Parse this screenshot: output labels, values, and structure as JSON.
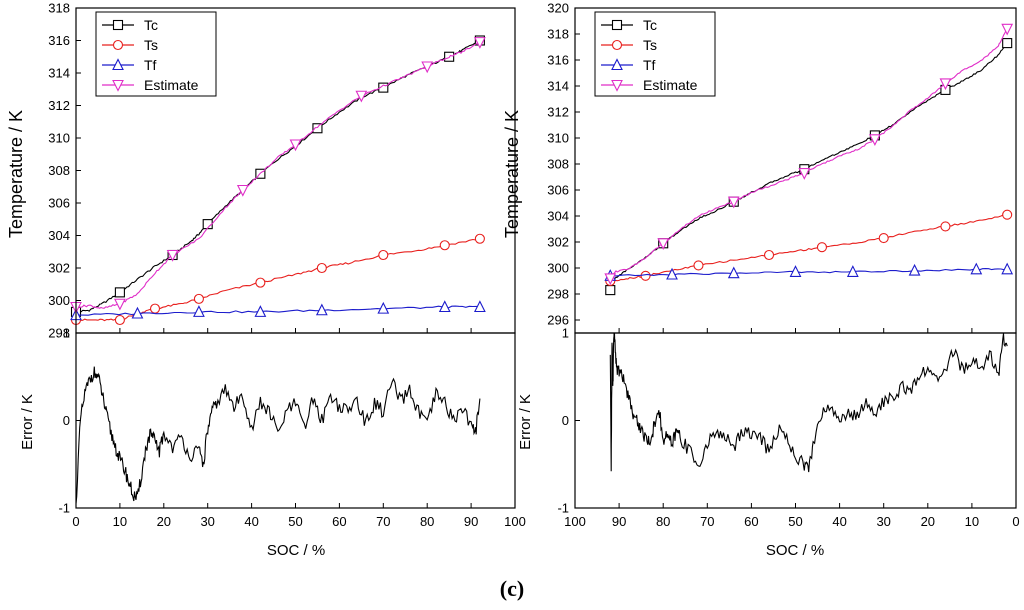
{
  "caption": "(c)",
  "chart_data": [
    {
      "type": "line",
      "panel": "left-top",
      "title": "",
      "xlabel": "SOC / %",
      "ylabel": "Temperature / K",
      "xlim": [
        0,
        100
      ],
      "ylim": [
        298,
        318
      ],
      "xticks": [
        0,
        10,
        20,
        30,
        40,
        50,
        60,
        70,
        80,
        90,
        100
      ],
      "yticks": [
        298,
        300,
        302,
        304,
        306,
        308,
        310,
        312,
        314,
        316,
        318
      ],
      "legend": "top-left",
      "series": [
        {
          "name": "Tc",
          "color": "#000000",
          "marker": "square",
          "x": [
            0,
            3,
            6,
            10,
            14,
            18,
            22,
            26,
            28,
            30,
            34,
            38,
            42,
            46,
            50,
            55,
            60,
            65,
            70,
            75,
            80,
            85,
            88,
            92
          ],
          "y": [
            299.3,
            299.4,
            299.8,
            300.5,
            301.3,
            302.1,
            302.8,
            303.6,
            304.1,
            304.7,
            305.8,
            306.8,
            307.8,
            308.7,
            309.5,
            310.6,
            311.6,
            312.5,
            313.1,
            313.8,
            314.4,
            315.0,
            315.4,
            316.0
          ]
        },
        {
          "name": "Ts",
          "color": "#e8201e",
          "marker": "circle",
          "x": [
            0,
            5,
            10,
            14,
            18,
            24,
            28,
            34,
            42,
            50,
            56,
            62,
            70,
            78,
            84,
            92
          ],
          "y": [
            298.8,
            298.8,
            298.8,
            299.2,
            299.5,
            299.8,
            300.1,
            300.6,
            301.1,
            301.6,
            302.0,
            302.3,
            302.8,
            303.1,
            303.4,
            303.8
          ]
        },
        {
          "name": "Tf",
          "color": "#1c1ccc",
          "marker": "triangle-up",
          "x": [
            0,
            14,
            28,
            42,
            56,
            70,
            84,
            92
          ],
          "y": [
            299.1,
            299.2,
            299.3,
            299.3,
            299.4,
            299.5,
            299.6,
            299.6
          ]
        },
        {
          "name": "Estimate",
          "color": "#e02ec8",
          "marker": "triangle-down",
          "x": [
            0,
            3,
            6,
            10,
            14,
            18,
            22,
            28,
            34,
            38,
            42,
            46,
            50,
            55,
            60,
            65,
            70,
            75,
            80,
            85,
            88,
            92
          ],
          "y": [
            299.6,
            299.7,
            299.5,
            299.8,
            300.4,
            301.7,
            302.8,
            303.8,
            305.7,
            306.8,
            307.8,
            308.8,
            309.6,
            310.7,
            311.7,
            312.6,
            313.2,
            313.8,
            314.4,
            315.0,
            315.3,
            315.9
          ]
        }
      ]
    },
    {
      "type": "line",
      "panel": "left-bottom",
      "xlabel": "SOC / %",
      "ylabel": "Error / K",
      "xlim": [
        0,
        100
      ],
      "ylim": [
        -1,
        1
      ],
      "xticks": [
        0,
        10,
        20,
        30,
        40,
        50,
        60,
        70,
        80,
        90,
        100
      ],
      "yticks": [
        -1,
        0,
        1
      ],
      "series": [
        {
          "name": "Error",
          "color": "#000000",
          "x": [
            0,
            1,
            2,
            3,
            4,
            5,
            6,
            7,
            8,
            9,
            10,
            11,
            12,
            13,
            14,
            15,
            16,
            17,
            18,
            19,
            20,
            22,
            24,
            26,
            28,
            29,
            30,
            31,
            32,
            34,
            36,
            38,
            40,
            42,
            44,
            46,
            48,
            50,
            52,
            54,
            56,
            58,
            60,
            62,
            64,
            66,
            68,
            70,
            72,
            74,
            76,
            78,
            80,
            82,
            84,
            86,
            88,
            90,
            91,
            92
          ],
          "y": [
            -0.95,
            0.0,
            0.3,
            0.45,
            0.55,
            0.5,
            0.3,
            0.05,
            -0.15,
            -0.3,
            -0.45,
            -0.55,
            -0.7,
            -0.85,
            -0.9,
            -0.6,
            -0.3,
            -0.15,
            -0.25,
            -0.35,
            -0.15,
            -0.3,
            -0.2,
            -0.4,
            -0.35,
            -0.5,
            -0.1,
            0.1,
            0.2,
            0.35,
            0.15,
            0.3,
            -0.1,
            0.2,
            0.1,
            -0.15,
            0.1,
            0.2,
            -0.1,
            0.25,
            0.0,
            0.3,
            0.15,
            0.1,
            0.25,
            -0.05,
            0.2,
            0.1,
            0.45,
            0.2,
            0.35,
            0.1,
            -0.05,
            0.3,
            0.2,
            0.0,
            0.15,
            -0.05,
            -0.15,
            0.25
          ]
        }
      ]
    },
    {
      "type": "line",
      "panel": "right-top",
      "xlabel": "SOC / %",
      "ylabel": "Temperature / K",
      "xlim": [
        100,
        0
      ],
      "ylim": [
        295,
        320
      ],
      "xticks": [
        100,
        90,
        80,
        70,
        60,
        50,
        40,
        30,
        20,
        10,
        0
      ],
      "yticks": [
        296,
        298,
        300,
        302,
        304,
        306,
        308,
        310,
        312,
        314,
        316,
        318,
        320
      ],
      "legend": "top-left",
      "series": [
        {
          "name": "Tc",
          "color": "#000000",
          "marker": "square",
          "x": [
            92,
            91,
            88,
            84,
            80,
            76,
            72,
            68,
            64,
            60,
            56,
            52,
            48,
            44,
            40,
            36,
            32,
            28,
            24,
            20,
            16,
            12,
            8,
            4,
            2
          ],
          "y": [
            298.3,
            299.2,
            299.9,
            300.8,
            301.9,
            302.9,
            303.8,
            304.4,
            305.1,
            305.8,
            306.5,
            307.1,
            307.6,
            308.3,
            308.9,
            309.5,
            310.2,
            311.0,
            312.0,
            312.9,
            313.7,
            314.4,
            315.2,
            316.4,
            317.3
          ]
        },
        {
          "name": "Ts",
          "color": "#e8201e",
          "marker": "circle",
          "x": [
            92,
            88,
            84,
            78,
            72,
            64,
            56,
            50,
            44,
            37,
            30,
            23,
            16,
            9,
            2
          ],
          "y": [
            299.0,
            299.2,
            299.4,
            299.8,
            300.2,
            300.6,
            301.0,
            301.3,
            301.6,
            301.9,
            302.3,
            302.8,
            303.2,
            303.6,
            304.1
          ]
        },
        {
          "name": "Tf",
          "color": "#1c1ccc",
          "marker": "triangle-up",
          "x": [
            92,
            78,
            64,
            50,
            37,
            23,
            9,
            2
          ],
          "y": [
            299.4,
            299.5,
            299.6,
            299.7,
            299.7,
            299.8,
            299.9,
            299.9
          ]
        },
        {
          "name": "Estimate",
          "color": "#e02ec8",
          "marker": "triangle-down",
          "x": [
            92,
            91,
            88,
            84,
            80,
            76,
            72,
            68,
            64,
            60,
            56,
            52,
            48,
            44,
            40,
            36,
            32,
            28,
            24,
            20,
            16,
            12,
            8,
            4,
            2
          ],
          "y": [
            299.2,
            299.7,
            299.9,
            300.8,
            301.9,
            303.0,
            304.0,
            304.6,
            305.1,
            305.8,
            306.3,
            306.8,
            307.3,
            308.0,
            308.6,
            309.1,
            309.9,
            310.9,
            312.1,
            313.1,
            314.2,
            315.2,
            315.9,
            317.1,
            318.4
          ]
        }
      ]
    },
    {
      "type": "line",
      "panel": "right-bottom",
      "xlabel": "SOC / %",
      "ylabel": "Error / K",
      "xlim": [
        100,
        0
      ],
      "ylim": [
        -1,
        1
      ],
      "xticks": [
        100,
        90,
        80,
        70,
        60,
        50,
        40,
        30,
        20,
        10,
        0
      ],
      "yticks": [
        -1,
        0,
        1
      ],
      "series": [
        {
          "name": "Error",
          "color": "#000000",
          "x": [
            92,
            91.8,
            91.6,
            91.4,
            91.2,
            91,
            90.6,
            90,
            89,
            88,
            87,
            86,
            85,
            84,
            83,
            82,
            81,
            80,
            79,
            78,
            77,
            76,
            74,
            72,
            70,
            68,
            66,
            64,
            62,
            60,
            58,
            56,
            54,
            52,
            50,
            48,
            47,
            46,
            44,
            42,
            40,
            38,
            36,
            34,
            32,
            30,
            28,
            26,
            24,
            22,
            20,
            18,
            16,
            14,
            12,
            10,
            8,
            6,
            4,
            3,
            2
          ],
          "y": [
            0.75,
            -0.5,
            0.85,
            0.4,
            1.0,
            0.95,
            0.6,
            0.55,
            0.5,
            0.3,
            0.1,
            0.0,
            -0.1,
            -0.2,
            -0.25,
            -0.05,
            0.15,
            -0.25,
            -0.15,
            -0.3,
            -0.1,
            -0.2,
            -0.35,
            -0.5,
            -0.3,
            -0.1,
            -0.2,
            -0.3,
            -0.1,
            -0.15,
            -0.2,
            -0.35,
            -0.1,
            -0.2,
            -0.4,
            -0.5,
            -0.55,
            -0.3,
            0.1,
            0.15,
            0.0,
            0.1,
            0.05,
            0.2,
            0.1,
            0.2,
            0.25,
            0.4,
            0.3,
            0.5,
            0.6,
            0.45,
            0.6,
            0.8,
            0.55,
            0.7,
            0.6,
            0.75,
            0.5,
            0.95,
            0.85
          ]
        }
      ]
    }
  ]
}
